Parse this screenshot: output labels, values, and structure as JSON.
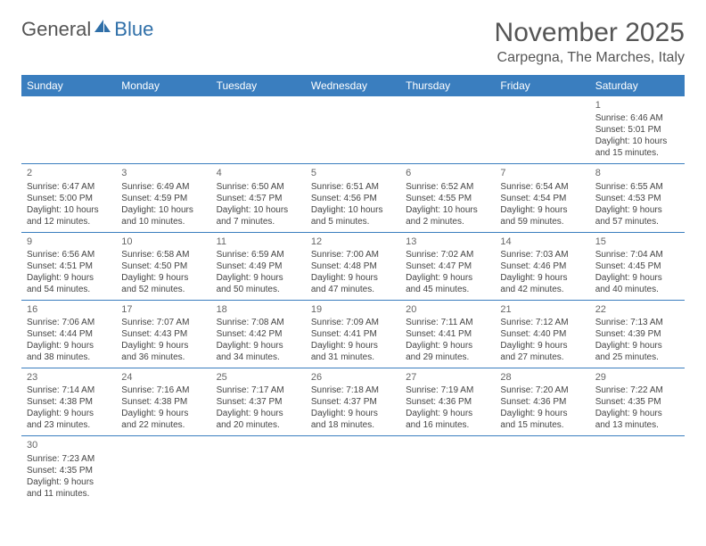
{
  "logo": {
    "text1": "General",
    "text2": "Blue"
  },
  "title": "November 2025",
  "location": "Carpegna, The Marches, Italy",
  "colors": {
    "header_bg": "#3a7ebf",
    "header_text": "#ffffff",
    "rule": "#3a7ebf",
    "text": "#444444",
    "title": "#555555"
  },
  "columns": [
    "Sunday",
    "Monday",
    "Tuesday",
    "Wednesday",
    "Thursday",
    "Friday",
    "Saturday"
  ],
  "weeks": [
    [
      null,
      null,
      null,
      null,
      null,
      null,
      {
        "n": "1",
        "sr": "Sunrise: 6:46 AM",
        "ss": "Sunset: 5:01 PM",
        "dl": "Daylight: 10 hours and 15 minutes."
      }
    ],
    [
      {
        "n": "2",
        "sr": "Sunrise: 6:47 AM",
        "ss": "Sunset: 5:00 PM",
        "dl": "Daylight: 10 hours and 12 minutes."
      },
      {
        "n": "3",
        "sr": "Sunrise: 6:49 AM",
        "ss": "Sunset: 4:59 PM",
        "dl": "Daylight: 10 hours and 10 minutes."
      },
      {
        "n": "4",
        "sr": "Sunrise: 6:50 AM",
        "ss": "Sunset: 4:57 PM",
        "dl": "Daylight: 10 hours and 7 minutes."
      },
      {
        "n": "5",
        "sr": "Sunrise: 6:51 AM",
        "ss": "Sunset: 4:56 PM",
        "dl": "Daylight: 10 hours and 5 minutes."
      },
      {
        "n": "6",
        "sr": "Sunrise: 6:52 AM",
        "ss": "Sunset: 4:55 PM",
        "dl": "Daylight: 10 hours and 2 minutes."
      },
      {
        "n": "7",
        "sr": "Sunrise: 6:54 AM",
        "ss": "Sunset: 4:54 PM",
        "dl": "Daylight: 9 hours and 59 minutes."
      },
      {
        "n": "8",
        "sr": "Sunrise: 6:55 AM",
        "ss": "Sunset: 4:53 PM",
        "dl": "Daylight: 9 hours and 57 minutes."
      }
    ],
    [
      {
        "n": "9",
        "sr": "Sunrise: 6:56 AM",
        "ss": "Sunset: 4:51 PM",
        "dl": "Daylight: 9 hours and 54 minutes."
      },
      {
        "n": "10",
        "sr": "Sunrise: 6:58 AM",
        "ss": "Sunset: 4:50 PM",
        "dl": "Daylight: 9 hours and 52 minutes."
      },
      {
        "n": "11",
        "sr": "Sunrise: 6:59 AM",
        "ss": "Sunset: 4:49 PM",
        "dl": "Daylight: 9 hours and 50 minutes."
      },
      {
        "n": "12",
        "sr": "Sunrise: 7:00 AM",
        "ss": "Sunset: 4:48 PM",
        "dl": "Daylight: 9 hours and 47 minutes."
      },
      {
        "n": "13",
        "sr": "Sunrise: 7:02 AM",
        "ss": "Sunset: 4:47 PM",
        "dl": "Daylight: 9 hours and 45 minutes."
      },
      {
        "n": "14",
        "sr": "Sunrise: 7:03 AM",
        "ss": "Sunset: 4:46 PM",
        "dl": "Daylight: 9 hours and 42 minutes."
      },
      {
        "n": "15",
        "sr": "Sunrise: 7:04 AM",
        "ss": "Sunset: 4:45 PM",
        "dl": "Daylight: 9 hours and 40 minutes."
      }
    ],
    [
      {
        "n": "16",
        "sr": "Sunrise: 7:06 AM",
        "ss": "Sunset: 4:44 PM",
        "dl": "Daylight: 9 hours and 38 minutes."
      },
      {
        "n": "17",
        "sr": "Sunrise: 7:07 AM",
        "ss": "Sunset: 4:43 PM",
        "dl": "Daylight: 9 hours and 36 minutes."
      },
      {
        "n": "18",
        "sr": "Sunrise: 7:08 AM",
        "ss": "Sunset: 4:42 PM",
        "dl": "Daylight: 9 hours and 34 minutes."
      },
      {
        "n": "19",
        "sr": "Sunrise: 7:09 AM",
        "ss": "Sunset: 4:41 PM",
        "dl": "Daylight: 9 hours and 31 minutes."
      },
      {
        "n": "20",
        "sr": "Sunrise: 7:11 AM",
        "ss": "Sunset: 4:41 PM",
        "dl": "Daylight: 9 hours and 29 minutes."
      },
      {
        "n": "21",
        "sr": "Sunrise: 7:12 AM",
        "ss": "Sunset: 4:40 PM",
        "dl": "Daylight: 9 hours and 27 minutes."
      },
      {
        "n": "22",
        "sr": "Sunrise: 7:13 AM",
        "ss": "Sunset: 4:39 PM",
        "dl": "Daylight: 9 hours and 25 minutes."
      }
    ],
    [
      {
        "n": "23",
        "sr": "Sunrise: 7:14 AM",
        "ss": "Sunset: 4:38 PM",
        "dl": "Daylight: 9 hours and 23 minutes."
      },
      {
        "n": "24",
        "sr": "Sunrise: 7:16 AM",
        "ss": "Sunset: 4:38 PM",
        "dl": "Daylight: 9 hours and 22 minutes."
      },
      {
        "n": "25",
        "sr": "Sunrise: 7:17 AM",
        "ss": "Sunset: 4:37 PM",
        "dl": "Daylight: 9 hours and 20 minutes."
      },
      {
        "n": "26",
        "sr": "Sunrise: 7:18 AM",
        "ss": "Sunset: 4:37 PM",
        "dl": "Daylight: 9 hours and 18 minutes."
      },
      {
        "n": "27",
        "sr": "Sunrise: 7:19 AM",
        "ss": "Sunset: 4:36 PM",
        "dl": "Daylight: 9 hours and 16 minutes."
      },
      {
        "n": "28",
        "sr": "Sunrise: 7:20 AM",
        "ss": "Sunset: 4:36 PM",
        "dl": "Daylight: 9 hours and 15 minutes."
      },
      {
        "n": "29",
        "sr": "Sunrise: 7:22 AM",
        "ss": "Sunset: 4:35 PM",
        "dl": "Daylight: 9 hours and 13 minutes."
      }
    ],
    [
      {
        "n": "30",
        "sr": "Sunrise: 7:23 AM",
        "ss": "Sunset: 4:35 PM",
        "dl": "Daylight: 9 hours and 11 minutes."
      },
      null,
      null,
      null,
      null,
      null,
      null
    ]
  ]
}
